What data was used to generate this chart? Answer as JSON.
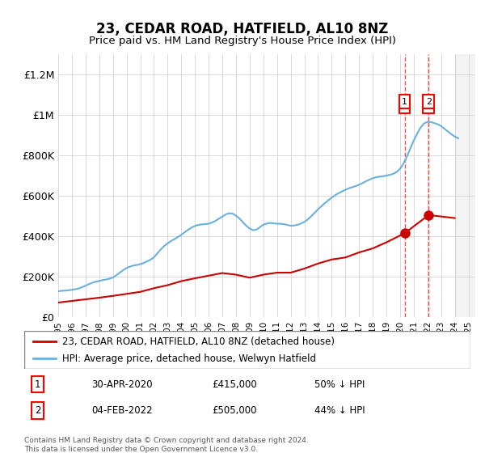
{
  "title": "23, CEDAR ROAD, HATFIELD, AL10 8NZ",
  "subtitle": "Price paid vs. HM Land Registry's House Price Index (HPI)",
  "xlabel": "",
  "ylabel": "",
  "ylim": [
    0,
    1300000
  ],
  "yticks": [
    0,
    200000,
    400000,
    600000,
    800000,
    1000000,
    1200000
  ],
  "ytick_labels": [
    "£0",
    "£200K",
    "£400K",
    "£600K",
    "£800K",
    "£1M",
    "£1.2M"
  ],
  "hpi_color": "#6ab0de",
  "price_color": "#cc0000",
  "transaction1": {
    "date": "30-APR-2020",
    "price": 415000,
    "pct": "50%",
    "label": "1",
    "x_year": 2020.33
  },
  "transaction2": {
    "date": "04-FEB-2022",
    "price": 505000,
    "pct": "44%",
    "label": "2",
    "x_year": 2022.09
  },
  "legend_label1": "23, CEDAR ROAD, HATFIELD, AL10 8NZ (detached house)",
  "legend_label2": "HPI: Average price, detached house, Welwyn Hatfield",
  "footnote": "Contains HM Land Registry data © Crown copyright and database right 2024.\nThis data is licensed under the Open Government Licence v3.0.",
  "hpi_years": [
    1995.0,
    1995.25,
    1995.5,
    1995.75,
    1996.0,
    1996.25,
    1996.5,
    1996.75,
    1997.0,
    1997.25,
    1997.5,
    1997.75,
    1998.0,
    1998.25,
    1998.5,
    1998.75,
    1999.0,
    1999.25,
    1999.5,
    1999.75,
    2000.0,
    2000.25,
    2000.5,
    2000.75,
    2001.0,
    2001.25,
    2001.5,
    2001.75,
    2002.0,
    2002.25,
    2002.5,
    2002.75,
    2003.0,
    2003.25,
    2003.5,
    2003.75,
    2004.0,
    2004.25,
    2004.5,
    2004.75,
    2005.0,
    2005.25,
    2005.5,
    2005.75,
    2006.0,
    2006.25,
    2006.5,
    2006.75,
    2007.0,
    2007.25,
    2007.5,
    2007.75,
    2008.0,
    2008.25,
    2008.5,
    2008.75,
    2009.0,
    2009.25,
    2009.5,
    2009.75,
    2010.0,
    2010.25,
    2010.5,
    2010.75,
    2011.0,
    2011.25,
    2011.5,
    2011.75,
    2012.0,
    2012.25,
    2012.5,
    2012.75,
    2013.0,
    2013.25,
    2013.5,
    2013.75,
    2014.0,
    2014.25,
    2014.5,
    2014.75,
    2015.0,
    2015.25,
    2015.5,
    2015.75,
    2016.0,
    2016.25,
    2016.5,
    2016.75,
    2017.0,
    2017.25,
    2017.5,
    2017.75,
    2018.0,
    2018.25,
    2018.5,
    2018.75,
    2019.0,
    2019.25,
    2019.5,
    2019.75,
    2020.0,
    2020.25,
    2020.5,
    2020.75,
    2021.0,
    2021.25,
    2021.5,
    2021.75,
    2022.0,
    2022.25,
    2022.5,
    2022.75,
    2023.0,
    2023.25,
    2023.5,
    2023.75,
    2024.0,
    2024.25
  ],
  "hpi_values": [
    128000,
    130000,
    131000,
    133000,
    135000,
    138000,
    142000,
    148000,
    155000,
    163000,
    170000,
    175000,
    179000,
    183000,
    186000,
    190000,
    196000,
    207000,
    220000,
    232000,
    243000,
    250000,
    255000,
    258000,
    262000,
    268000,
    276000,
    284000,
    296000,
    315000,
    335000,
    352000,
    365000,
    376000,
    386000,
    396000,
    407000,
    420000,
    432000,
    443000,
    451000,
    456000,
    459000,
    460000,
    462000,
    468000,
    476000,
    487000,
    497000,
    508000,
    514000,
    512000,
    502000,
    488000,
    470000,
    452000,
    438000,
    430000,
    433000,
    445000,
    457000,
    463000,
    466000,
    464000,
    462000,
    462000,
    460000,
    456000,
    452000,
    453000,
    457000,
    463000,
    471000,
    483000,
    499000,
    516000,
    533000,
    549000,
    564000,
    578000,
    591000,
    603000,
    613000,
    622000,
    630000,
    637000,
    643000,
    648000,
    655000,
    663000,
    672000,
    680000,
    687000,
    692000,
    695000,
    697000,
    700000,
    704000,
    709000,
    718000,
    734000,
    760000,
    795000,
    835000,
    874000,
    908000,
    938000,
    958000,
    966000,
    965000,
    960000,
    954000,
    945000,
    932000,
    918000,
    905000,
    893000,
    885000
  ],
  "price_years": [
    1995.0,
    1995.5,
    1996.0,
    1997.0,
    1997.5,
    1998.0,
    1999.0,
    2000.0,
    2001.0,
    2002.0,
    2003.0,
    2004.0,
    2005.0,
    2006.0,
    2007.0,
    2008.0,
    2009.0,
    2010.0,
    2011.0,
    2012.0,
    2013.0,
    2014.0,
    2015.0,
    2016.0,
    2017.0,
    2018.0,
    2019.0,
    2020.33,
    2022.09,
    2024.0
  ],
  "price_values": [
    72000,
    76000,
    80000,
    88000,
    92000,
    96000,
    105000,
    115000,
    125000,
    143000,
    158000,
    178000,
    192000,
    205000,
    218000,
    210000,
    195000,
    210000,
    220000,
    220000,
    240000,
    265000,
    285000,
    295000,
    320000,
    340000,
    370000,
    415000,
    505000,
    490000
  ],
  "background_color": "#ffffff",
  "grid_color": "#cccccc",
  "shade_right": true,
  "shade_x_start": 2024.0,
  "shade_x_end": 2025.5,
  "vline1_x": 2020.33,
  "vline2_x": 2022.09,
  "xlim_left": 1995.0,
  "xlim_right": 2025.5
}
